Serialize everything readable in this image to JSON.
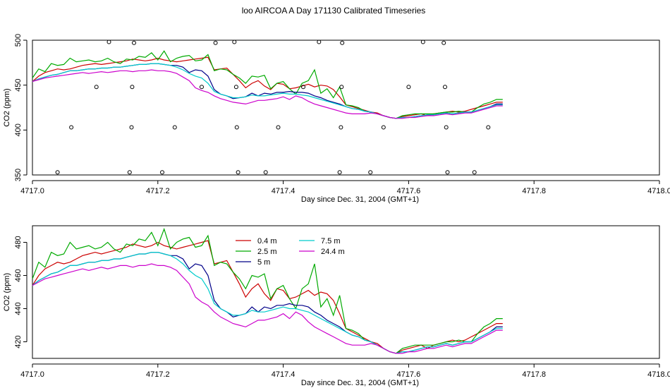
{
  "title": "loo AIRCOA A  Day 171130  Calibrated Timeseries",
  "chart_data": [
    {
      "type": "line",
      "ylabel": "CO2 (ppm)",
      "xlabel": "Day since Dec. 31, 2004 (GMT+1)",
      "xlim": [
        4717.0,
        4718.0
      ],
      "ylim": [
        350,
        500
      ],
      "x_ticks": [
        "4717.0",
        "4717.2",
        "4717.4",
        "4717.6",
        "4717.8",
        "4718.0"
      ],
      "y_ticks": [
        "350",
        "400",
        "450",
        "500"
      ],
      "x": [
        4717.0,
        4717.01,
        4717.02,
        4717.03,
        4717.04,
        4717.05,
        4717.06,
        4717.07,
        4717.08,
        4717.09,
        4717.1,
        4717.11,
        4717.12,
        4717.13,
        4717.14,
        4717.15,
        4717.16,
        4717.17,
        4717.18,
        4717.19,
        4717.2,
        4717.21,
        4717.22,
        4717.23,
        4717.24,
        4717.25,
        4717.26,
        4717.27,
        4717.28,
        4717.29,
        4717.3,
        4717.31,
        4717.32,
        4717.33,
        4717.34,
        4717.35,
        4717.36,
        4717.37,
        4717.38,
        4717.39,
        4717.4,
        4717.41,
        4717.42,
        4717.43,
        4717.44,
        4717.45,
        4717.46,
        4717.47,
        4717.48,
        4717.49,
        4717.5,
        4717.51,
        4717.52,
        4717.53,
        4717.54,
        4717.55,
        4717.56,
        4717.57,
        4717.58,
        4717.59,
        4717.6,
        4717.61,
        4717.62,
        4717.63,
        4717.64,
        4717.65,
        4717.66,
        4717.67,
        4717.68,
        4717.69,
        4717.7,
        4717.71,
        4717.72,
        4717.73,
        4717.74,
        4717.75
      ],
      "series": [
        {
          "color": "#cc0000",
          "values": [
            454,
            460,
            464,
            466,
            468,
            467,
            468,
            470,
            472,
            473,
            474,
            473,
            474,
            475,
            476,
            477,
            479,
            478,
            477,
            478,
            480,
            478,
            477,
            476,
            477,
            478,
            479,
            480,
            481,
            467,
            468,
            469,
            462,
            455,
            447,
            452,
            455,
            449,
            445,
            452,
            451,
            446,
            447,
            449,
            451,
            448,
            450,
            449,
            445,
            437,
            428,
            426,
            424,
            422,
            420,
            419,
            416,
            414,
            413,
            415,
            416,
            417,
            418,
            416,
            418,
            419,
            420,
            421,
            420,
            421,
            423,
            425,
            427,
            429,
            431,
            431
          ]
        },
        {
          "color": "#00aa00",
          "values": [
            458,
            468,
            465,
            474,
            472,
            473,
            480,
            476,
            477,
            478,
            476,
            477,
            480,
            476,
            474,
            479,
            478,
            482,
            481,
            486,
            478,
            488,
            476,
            480,
            482,
            483,
            477,
            478,
            484,
            466,
            468,
            467,
            462,
            458,
            452,
            460,
            459,
            461,
            446,
            452,
            454,
            446,
            440,
            452,
            455,
            467,
            441,
            446,
            436,
            448,
            428,
            427,
            425,
            421,
            420,
            418,
            416,
            414,
            413,
            416,
            417,
            418,
            418,
            418,
            418,
            419,
            420,
            420,
            421,
            420,
            420,
            425,
            429,
            431,
            434,
            434
          ]
        },
        {
          "color": "#000088",
          "values": [
            454,
            457,
            459,
            461,
            462,
            464,
            466,
            466,
            467,
            468,
            468,
            469,
            469,
            470,
            470,
            471,
            472,
            473,
            473,
            474,
            474,
            473,
            472,
            472,
            470,
            464,
            467,
            466,
            460,
            445,
            440,
            438,
            435,
            436,
            437,
            441,
            438,
            441,
            440,
            442,
            442,
            443,
            442,
            442,
            441,
            438,
            436,
            433,
            431,
            429,
            426,
            424,
            423,
            421,
            420,
            418,
            416,
            414,
            413,
            414,
            414,
            415,
            416,
            417,
            417,
            418,
            419,
            418,
            419,
            420,
            420,
            422,
            424,
            426,
            429,
            429
          ]
        },
        {
          "color": "#00cccc",
          "values": [
            454,
            457,
            459,
            461,
            462,
            464,
            466,
            466,
            467,
            468,
            468,
            469,
            469,
            470,
            470,
            471,
            472,
            473,
            473,
            474,
            474,
            473,
            472,
            470,
            467,
            463,
            460,
            458,
            452,
            443,
            440,
            438,
            436,
            436,
            437,
            439,
            438,
            438,
            439,
            440,
            441,
            440,
            440,
            439,
            438,
            436,
            434,
            432,
            430,
            428,
            426,
            424,
            423,
            421,
            420,
            418,
            416,
            414,
            413,
            414,
            414,
            415,
            416,
            417,
            417,
            418,
            419,
            418,
            419,
            420,
            420,
            422,
            424,
            426,
            428,
            428
          ]
        },
        {
          "color": "#cc00cc",
          "values": [
            454,
            456,
            458,
            459,
            460,
            461,
            462,
            463,
            464,
            463,
            464,
            465,
            464,
            465,
            466,
            466,
            465,
            466,
            466,
            467,
            466,
            466,
            465,
            463,
            459,
            455,
            447,
            444,
            442,
            438,
            435,
            433,
            431,
            430,
            429,
            431,
            433,
            433,
            434,
            435,
            437,
            434,
            438,
            436,
            432,
            429,
            427,
            425,
            423,
            421,
            419,
            418,
            418,
            418,
            419,
            418,
            416,
            414,
            413,
            413,
            414,
            414,
            415,
            416,
            416,
            417,
            418,
            417,
            418,
            419,
            419,
            421,
            423,
            425,
            427,
            427
          ]
        }
      ],
      "points": [
        {
          "x": 4717.04,
          "y": 353
        },
        {
          "x": 4717.062,
          "y": 403
        },
        {
          "x": 4717.102,
          "y": 448
        },
        {
          "x": 4717.122,
          "y": 498
        },
        {
          "x": 4717.155,
          "y": 353
        },
        {
          "x": 4717.158,
          "y": 403
        },
        {
          "x": 4717.159,
          "y": 448
        },
        {
          "x": 4717.162,
          "y": 497
        },
        {
          "x": 4717.207,
          "y": 353
        },
        {
          "x": 4717.227,
          "y": 403
        },
        {
          "x": 4717.27,
          "y": 448
        },
        {
          "x": 4717.292,
          "y": 497
        },
        {
          "x": 4717.322,
          "y": 498
        },
        {
          "x": 4717.325,
          "y": 448
        },
        {
          "x": 4717.326,
          "y": 403
        },
        {
          "x": 4717.328,
          "y": 353
        },
        {
          "x": 4717.372,
          "y": 353
        },
        {
          "x": 4717.392,
          "y": 403
        },
        {
          "x": 4717.432,
          "y": 448
        },
        {
          "x": 4717.457,
          "y": 498
        },
        {
          "x": 4717.49,
          "y": 353
        },
        {
          "x": 4717.492,
          "y": 403
        },
        {
          "x": 4717.493,
          "y": 448
        },
        {
          "x": 4717.494,
          "y": 497
        },
        {
          "x": 4717.539,
          "y": 353
        },
        {
          "x": 4717.56,
          "y": 403
        },
        {
          "x": 4717.6,
          "y": 448
        },
        {
          "x": 4717.623,
          "y": 498
        },
        {
          "x": 4717.656,
          "y": 497
        },
        {
          "x": 4717.658,
          "y": 448
        },
        {
          "x": 4717.66,
          "y": 403
        },
        {
          "x": 4717.662,
          "y": 353
        },
        {
          "x": 4717.705,
          "y": 353
        },
        {
          "x": 4717.727,
          "y": 403
        }
      ]
    },
    {
      "type": "line",
      "ylabel": "CO2 (ppm)",
      "xlabel": "Day since Dec. 31, 2004 (GMT+1)",
      "xlim": [
        4717.0,
        4718.0
      ],
      "ylim": [
        410,
        490
      ],
      "x_ticks": [
        "4717.0",
        "4717.2",
        "4717.4",
        "4717.6",
        "4717.8",
        "4718.0"
      ],
      "y_ticks": [
        "420",
        "440",
        "460",
        "480"
      ],
      "legend": [
        {
          "label": "0.4 m",
          "color": "#cc0000"
        },
        {
          "label": "2.5 m",
          "color": "#00aa00"
        },
        {
          "label": "5 m",
          "color": "#000088"
        },
        {
          "label": "7.5 m",
          "color": "#00cccc"
        },
        {
          "label": "24.4 m",
          "color": "#cc00cc"
        }
      ]
    }
  ]
}
